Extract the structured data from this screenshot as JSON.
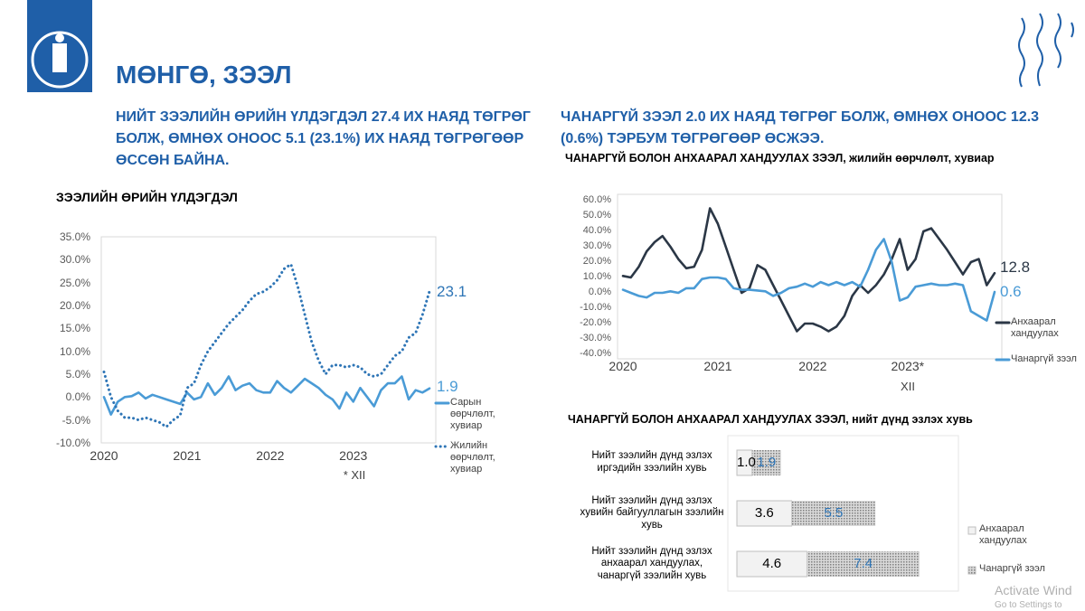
{
  "header": {
    "title": "МӨНГӨ, ЗЭЭЛ",
    "left_heading": "НИЙТ ЗЭЭЛИЙН ӨРИЙН ҮЛДЭГДЭЛ 27.4 ИХ НАЯД ТӨГРӨГ БОЛЖ, ӨМНӨХ ОНООС 5.1 (23.1%) ИХ НАЯД ТӨГРӨГӨӨР ӨССӨН БАЙНА.",
    "right_heading": "ЧАНАРГҮЙ ЗЭЭЛ 2.0 ИХ НАЯД ТӨГРӨГ БОЛЖ, ӨМНӨХ ОНООС 12.3 (0.6%) ТЭРБУМ ТӨГРӨГӨӨР ӨСЖЭЭ."
  },
  "watermark": [
    "Activate Wind",
    "Go to Settings to"
  ],
  "chart_data": [
    {
      "type": "line",
      "title": "ЗЭЭЛИЙН ӨРИЙН ҮЛДЭГДЭЛ",
      "categories": [
        "2020",
        null,
        null,
        null,
        null,
        null,
        null,
        null,
        null,
        null,
        null,
        null,
        "2021",
        null,
        null,
        null,
        null,
        null,
        null,
        null,
        null,
        null,
        null,
        null,
        "2022",
        null,
        null,
        null,
        null,
        null,
        null,
        null,
        null,
        null,
        null,
        null,
        "2023",
        null,
        null,
        null,
        null,
        null,
        null,
        null,
        null,
        null,
        null,
        null
      ],
      "x_note": "* XII",
      "ylim": [
        -10,
        35
      ],
      "grid": false,
      "yticks": [
        {
          "value": 35,
          "label": "35.0%"
        },
        {
          "value": 30,
          "label": "30.0%"
        },
        {
          "value": 25,
          "label": "25.0%"
        },
        {
          "value": 20,
          "label": "20.0%"
        },
        {
          "value": 15,
          "label": "15.0%"
        },
        {
          "value": 10,
          "label": "10.0%"
        },
        {
          "value": 5,
          "label": "5.0%"
        },
        {
          "value": 0,
          "label": "0.0%"
        },
        {
          "value": -5,
          "label": "-5.0%"
        },
        {
          "value": -10,
          "label": "-10.0%"
        }
      ],
      "series": [
        {
          "name": "Сарын өөрчлөлт, хувиар",
          "color": "#4a9bd6",
          "style": "solid",
          "values": [
            0,
            -3.8,
            -1,
            0,
            0.2,
            1,
            -0.3,
            0.5,
            0,
            -0.5,
            -1,
            -1.5,
            1,
            -0.5,
            0,
            3,
            0.5,
            2,
            4.5,
            1.5,
            2.5,
            3,
            1.5,
            1,
            1,
            3.5,
            2,
            1,
            2.5,
            4,
            3,
            2,
            0.5,
            -0.5,
            -2.5,
            1,
            -1,
            2,
            0,
            -2,
            1.5,
            3,
            3,
            4.5,
            -0.5,
            1.5,
            1,
            1.9
          ]
        },
        {
          "name": "Жилийн өөрчлөлт, хувиар",
          "color": "#2e75b6",
          "style": "dotted",
          "values": [
            5.5,
            0,
            -3,
            -4.5,
            -4.5,
            -5,
            -4.5,
            -5,
            -5.5,
            -6.5,
            -5,
            -4,
            2,
            3,
            7,
            10,
            12,
            14,
            16,
            17.5,
            19,
            21,
            22.5,
            23,
            24,
            25.5,
            28,
            29,
            24,
            18,
            12,
            8,
            5,
            7,
            7,
            6.5,
            7,
            6.5,
            5,
            4.5,
            5,
            7,
            9,
            10,
            13,
            14,
            18,
            23.1
          ]
        }
      ]
    },
    {
      "type": "line",
      "title": "ЧАНАРГҮЙ БОЛОН АНХААРАЛ ХАНДУУЛАХ ЗЭЭЛ, жилийн өөрчлөлт, хувиар",
      "categories": [
        "2020",
        null,
        null,
        null,
        null,
        null,
        null,
        null,
        null,
        null,
        null,
        null,
        "2021",
        null,
        null,
        null,
        null,
        null,
        null,
        null,
        null,
        null,
        null,
        null,
        "2022",
        null,
        null,
        null,
        null,
        null,
        null,
        null,
        null,
        null,
        null,
        null,
        "2023*",
        null,
        null,
        null,
        null,
        null,
        null,
        null,
        null,
        null,
        null,
        null
      ],
      "x_note": "XII",
      "ylim": [
        -40,
        60
      ],
      "grid": false,
      "yticks": [
        {
          "value": 60,
          "label": "60.0%"
        },
        {
          "value": 50,
          "label": "50.0%"
        },
        {
          "value": 40,
          "label": "40.0%"
        },
        {
          "value": 30,
          "label": "30.0%"
        },
        {
          "value": 20,
          "label": "20.0%"
        },
        {
          "value": 10,
          "label": "10.0%"
        },
        {
          "value": 0,
          "label": "0.0%"
        },
        {
          "value": -10,
          "label": "-10.0%"
        },
        {
          "value": -20,
          "label": "-20.0%"
        },
        {
          "value": -30,
          "label": "-30.0%"
        },
        {
          "value": -40,
          "label": "-40.0%"
        }
      ],
      "series": [
        {
          "name": "Анхаарал хандуулах",
          "color": "#2b3746",
          "style": "solid",
          "values": [
            11,
            10,
            17,
            27,
            33,
            37,
            30,
            22,
            16,
            17,
            28,
            55,
            45,
            30,
            15,
            0,
            3,
            18,
            15,
            5,
            -5,
            -15,
            -25,
            -20,
            -20,
            -22,
            -25,
            -22,
            -15,
            -2,
            5,
            0,
            5,
            12,
            22,
            35,
            15,
            22,
            40,
            42,
            35,
            28,
            20,
            12,
            20,
            22,
            5,
            12.8
          ]
        },
        {
          "name": "Чанаргүй зээл",
          "color": "#4a9bd6",
          "style": "solid",
          "values": [
            2,
            0,
            -2,
            -3,
            0,
            0,
            1,
            0,
            3,
            3,
            9,
            10,
            10,
            9,
            3,
            2,
            2,
            1.5,
            1,
            -2,
            0,
            3,
            4,
            6,
            4,
            7,
            5,
            7,
            5,
            7,
            4,
            15,
            28,
            35,
            20,
            -5,
            -3,
            4,
            5,
            6,
            5,
            5,
            6,
            5,
            -12,
            -15,
            -18,
            0.6
          ]
        }
      ]
    },
    {
      "type": "bar",
      "orientation": "horizontal",
      "stacked": true,
      "title": "ЧАНАРГҮЙ БОЛОН АНХААРАЛ ХАНДУУЛАХ ЗЭЭЛ, нийт дүнд эзлэх хувь",
      "categories": [
        "Нийт зээлийн дүнд эзлэх иргэдийн зээлийн хувь",
        "Нийт зээлийн дүнд эзлэх хувийн байгууллагын зээлийн хувь",
        "Нийт зээлийн дүнд эзлэх анхаарал хандуулах, чанаргүй зээлийн хувь"
      ],
      "series": [
        {
          "name": "Анхаарал хандуулах",
          "color": "#f2f2f2",
          "pattern": "none",
          "label_color": "#000000",
          "values": [
            1.0,
            3.6,
            4.6
          ],
          "value_labels": [
            "1.0",
            "3.6",
            "4.6"
          ]
        },
        {
          "name": "Чанаргүй зээл",
          "color": "#a6a6a6",
          "pattern": "dots",
          "label_color": "#2e75b6",
          "values": [
            1.9,
            5.5,
            7.4
          ]
        }
      ]
    }
  ]
}
